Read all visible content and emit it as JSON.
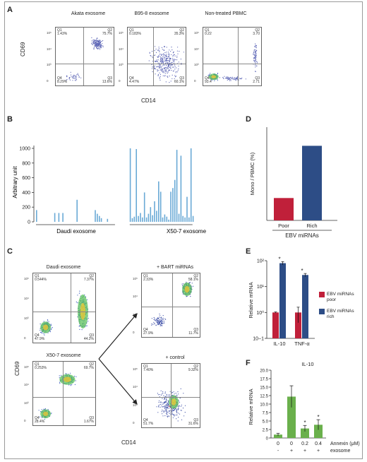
{
  "panels": {
    "A": "A",
    "B": "B",
    "C": "C",
    "D": "D",
    "E": "E",
    "F": "F"
  },
  "panelA": {
    "ylabel": "CD69",
    "xlabel": "CD14",
    "plots": [
      {
        "title": "Akata\nexosome",
        "q1": "Q1\n1.43%",
        "q2": "Q2\n75.7%",
        "q4": "Q4\n8.29%",
        "q3": "Q3\n13.6%"
      },
      {
        "title": "B95-8\nexosome",
        "q1": "Q1\n0.183%",
        "q2": "Q2\n35.3%",
        "q4": "Q4\n4.47%",
        "q3": "Q3\n60.1%"
      },
      {
        "title": "Non-treated\nPBMC",
        "q1": "Q1\n0.22",
        "q2": "Q2\n3.70",
        "q4": "Q4\n93.4",
        "q3": "Q3\n2.71"
      }
    ],
    "yticks": [
      "10⁵",
      "10⁴",
      "10³",
      "0"
    ]
  },
  "panelB": {
    "ylabel": "Arbitrary unit",
    "yticks": [
      "0",
      "200",
      "400",
      "600",
      "800",
      "1000"
    ],
    "groups": [
      "Daudi exosome",
      "X50-7 exosome"
    ]
  },
  "panelC": {
    "ylabel": "CD69",
    "xlabel": "CD14",
    "plots": [
      {
        "title": "Daudi exosome",
        "q1": "Q1\n0.544%",
        "q2": "Q2\n7.37%",
        "q4": "Q4\n47.9%",
        "q3": "Q3\n44.2%"
      },
      {
        "title": "X50-7 exosome",
        "q1": "Q1\n0.253%",
        "q2": "Q2\n69.7%",
        "q4": "Q4\n28.4%",
        "q3": "Q3\n1.67%"
      },
      {
        "title": "+ BART miRNAs",
        "q1": "Q1\n2.33%",
        "q2": "Q2\n58.1%",
        "q4": "Q4\n27.9%",
        "q3": "Q3\n11.7%"
      },
      {
        "title": "+ control",
        "q1": "Q1\n7.40%",
        "q2": "Q2\n9.32%",
        "q4": "Q4\n51.7%",
        "q3": "Q3\n31.6%"
      }
    ],
    "yticks": [
      "10⁵",
      "10⁴",
      "10³",
      "0"
    ]
  },
  "chart_data": [
    {
      "panel": "B",
      "type": "bar",
      "ylabel": "Arbitrary unit",
      "ylim": [
        0,
        1000
      ],
      "color": "#6aaad6",
      "series": [
        {
          "name": "Daudi exosome",
          "values": [
            160,
            0,
            0,
            0,
            0,
            0,
            0,
            0,
            0,
            120,
            0,
            120,
            0,
            120,
            0,
            0,
            0,
            0,
            0,
            0,
            300,
            0,
            0,
            0,
            0,
            0,
            0,
            0,
            0,
            160,
            110,
            80,
            50,
            0,
            0,
            40,
            0,
            0,
            0,
            0
          ]
        },
        {
          "name": "X50-7 exosome",
          "values": [
            1000,
            50,
            70,
            990,
            80,
            120,
            60,
            400,
            60,
            110,
            200,
            90,
            280,
            150,
            550,
            410,
            60,
            100,
            70,
            30,
            410,
            460,
            570,
            980,
            110,
            900,
            80,
            60,
            340,
            60,
            1000,
            80
          ]
        }
      ]
    },
    {
      "panel": "D",
      "type": "bar",
      "ylabel": "Mono / PBMC (%)",
      "xlabel": "EBV miRNAs",
      "categories": [
        "Poor",
        "Rich"
      ],
      "values": [
        12,
        40
      ],
      "ylim": [
        0,
        50
      ],
      "colors": [
        "#c0203a",
        "#2d4d86"
      ]
    },
    {
      "panel": "E",
      "type": "bar",
      "ylabel": "Relative mRNA",
      "scale": "log",
      "ylim": [
        0.1,
        100
      ],
      "yticks": [
        "10−1",
        "10⁰",
        "10¹",
        "10²"
      ],
      "categories": [
        "IL-10",
        "TNF-α"
      ],
      "series": [
        {
          "name": "EBV miRNAs poor",
          "values": [
            1.0,
            1.0
          ],
          "errors": [
            0.05,
            0.6
          ],
          "color": "#c0203a"
        },
        {
          "name": "EBV miRNAs rich",
          "values": [
            80,
            28
          ],
          "errors": [
            12,
            4
          ],
          "color": "#2d4d86"
        }
      ],
      "annotations": [
        "*",
        "*"
      ]
    },
    {
      "panel": "F",
      "type": "bar",
      "title": "IL-10",
      "ylabel": "Relative mRNA",
      "ylim": [
        0,
        20
      ],
      "yticks": [
        "0",
        "2.5",
        "5.0",
        "7.5",
        "10.0",
        "12.5",
        "15.0",
        "17.5",
        "20.0"
      ],
      "categories": [
        "0",
        "0",
        "0.2",
        "0.4"
      ],
      "row2": [
        "-",
        "+",
        "+",
        "+"
      ],
      "row1_label": "Annexin (μM)",
      "row2_label": "exosome",
      "values": [
        1.0,
        12.2,
        2.8,
        3.9
      ],
      "errors": [
        0.4,
        3.2,
        0.9,
        1.5
      ],
      "annotations": [
        "",
        "",
        "*",
        "*"
      ],
      "color": "#6ab04c"
    }
  ]
}
